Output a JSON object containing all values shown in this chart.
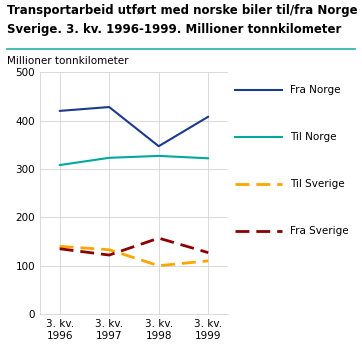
{
  "title_line1": "Transportarbeid utført med norske biler til/fra Norge og",
  "title_line2": "Sverige. 3. kv. 1996-1999. Millioner tonnkilometer",
  "ylabel": "Millioner tonnkilometer",
  "x_labels": [
    "3. kv.\n1996",
    "3. kv.\n1997",
    "3. kv.\n1998",
    "3. kv.\n1999"
  ],
  "x_positions": [
    0,
    1,
    2,
    3
  ],
  "fra_norge": [
    420,
    428,
    347,
    408
  ],
  "til_norge": [
    308,
    323,
    327,
    322
  ],
  "til_sverige": [
    140,
    133,
    100,
    110
  ],
  "fra_sverige": [
    135,
    122,
    157,
    127
  ],
  "fra_norge_color": "#1a3a8c",
  "til_norge_color": "#00a89d",
  "til_sverige_color": "#FFA500",
  "fra_sverige_color": "#8B0000",
  "ylim": [
    0,
    500
  ],
  "yticks": [
    0,
    100,
    200,
    300,
    400,
    500
  ],
  "title_fontsize": 8.5,
  "axis_label_fontsize": 7.5,
  "tick_fontsize": 7.5,
  "legend_fontsize": 7.5,
  "background_color": "#ffffff",
  "header_line_color": "#20b2aa",
  "grid_color": "#cccccc"
}
